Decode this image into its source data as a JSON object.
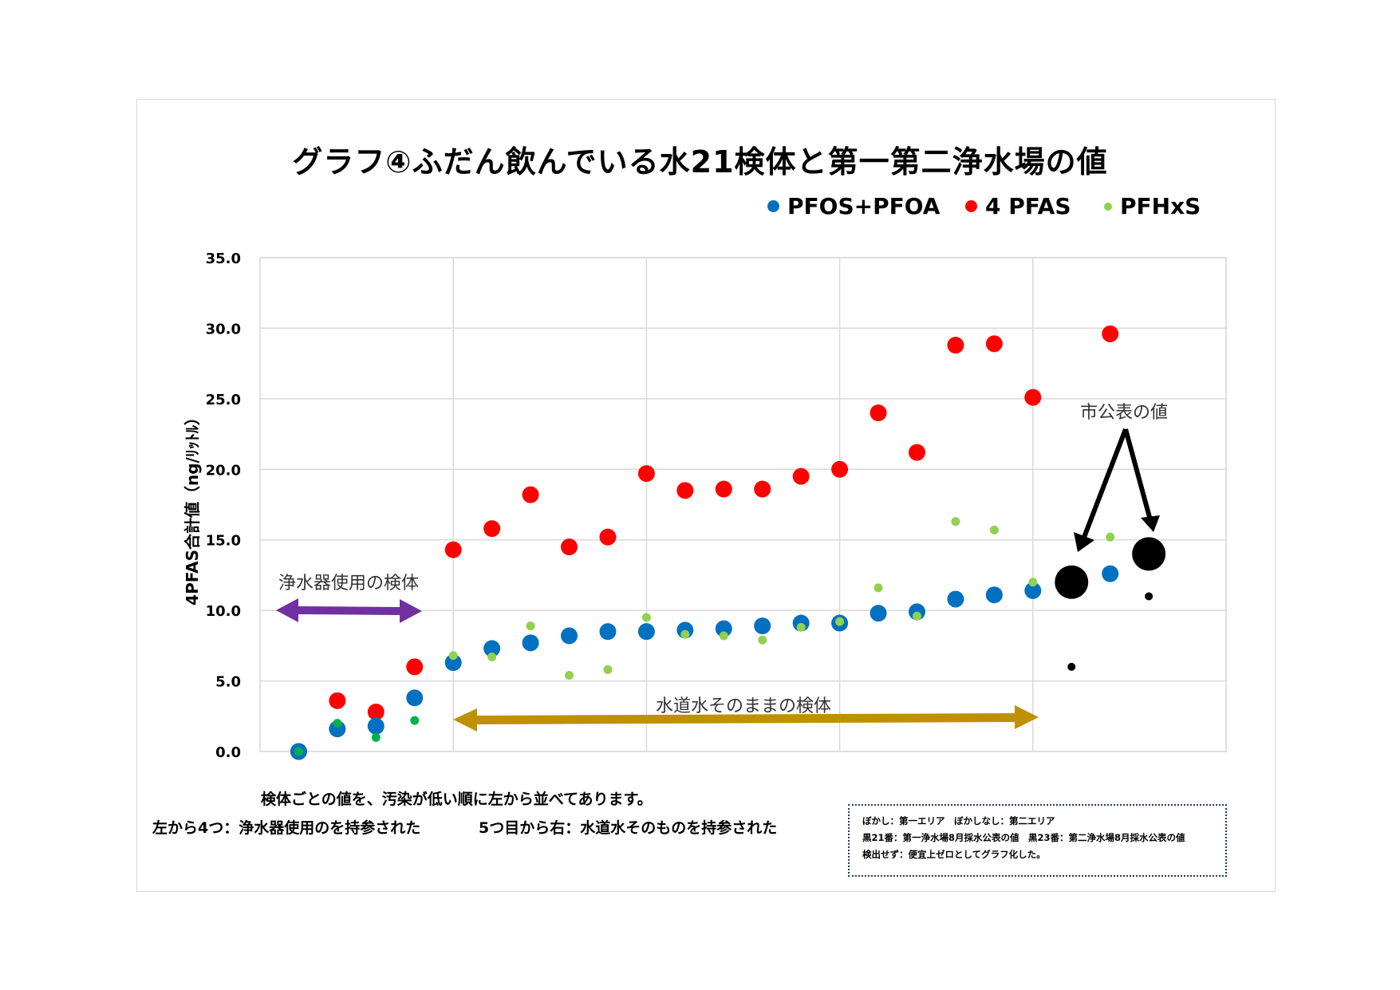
{
  "chart_data": {
    "type": "scatter",
    "title": "グラフ④ふだん飲んでいる水21検体と第一第二浄水場の値",
    "ylabel": "4PFAS合計値（ng/ﾘｯﾄﾙ）",
    "xlabel": "",
    "xlim": [
      0,
      25
    ],
    "ylim": [
      0,
      35
    ],
    "x_gridlines": [
      5,
      10,
      15,
      20,
      25
    ],
    "y_ticks": [
      "0.0",
      "5.0",
      "10.0",
      "15.0",
      "20.0",
      "25.0",
      "30.0",
      "35.0"
    ],
    "grid": true,
    "legend_position": "top-right",
    "series": [
      {
        "name": "4 PFAS",
        "color": "#FF0000",
        "x": [
          1,
          2,
          3,
          4,
          5,
          6,
          7,
          8,
          9,
          10,
          11,
          12,
          13,
          14,
          15,
          16,
          17,
          18,
          19,
          20,
          22
        ],
        "values": [
          0,
          3.6,
          2.8,
          6.0,
          14.3,
          15.8,
          18.2,
          14.5,
          15.2,
          19.7,
          18.5,
          18.6,
          18.6,
          19.5,
          20.0,
          24.0,
          21.2,
          28.8,
          28.9,
          25.1,
          29.6
        ]
      },
      {
        "name": "PFOS+PFOA",
        "color": "#0070C0",
        "x": [
          1,
          2,
          3,
          4,
          5,
          6,
          7,
          8,
          9,
          10,
          11,
          12,
          13,
          14,
          15,
          16,
          17,
          18,
          19,
          20,
          22
        ],
        "values": [
          0,
          1.6,
          1.8,
          3.8,
          6.3,
          7.3,
          7.7,
          8.2,
          8.5,
          8.5,
          8.6,
          8.7,
          8.9,
          9.1,
          9.1,
          9.8,
          9.9,
          10.8,
          11.1,
          11.4,
          12.6
        ]
      },
      {
        "name": "PFHxS",
        "color": "#92D050",
        "point_colors": [
          "#00B050",
          "#00B050",
          "#00B050",
          "#00B050",
          "#92D050",
          "#92D050",
          "#92D050",
          "#92D050",
          "#92D050",
          "#92D050",
          "#92D050",
          "#92D050",
          "#92D050",
          "#92D050",
          "#92D050",
          "#92D050",
          "#92D050",
          "#92D050",
          "#92D050",
          "#92D050",
          "#92D050"
        ],
        "x": [
          1,
          2,
          3,
          4,
          5,
          6,
          7,
          8,
          9,
          10,
          11,
          12,
          13,
          14,
          15,
          16,
          17,
          18,
          19,
          20,
          22
        ],
        "values": [
          0,
          2.0,
          1.0,
          2.2,
          6.8,
          6.7,
          8.9,
          5.4,
          5.8,
          9.5,
          8.3,
          8.2,
          7.9,
          8.8,
          9.2,
          11.6,
          9.6,
          16.3,
          15.7,
          12.0,
          15.2
        ]
      },
      {
        "color": "#000000",
        "marker": "large",
        "x": [
          21,
          23
        ],
        "values": [
          12.0,
          14.0
        ]
      },
      {
        "color": "#000000",
        "marker": "small",
        "x": [
          21,
          23
        ],
        "values": [
          6.0,
          11.0
        ]
      }
    ],
    "annotations": {
      "purifier": "浄水器使用の検体",
      "tap": "水道水そのままの検体",
      "city": "市公表の値",
      "purifier_arrow_color": "#7030A0",
      "tap_arrow_color": "#BF9000"
    }
  },
  "footer": {
    "line1": "検体ごとの値を、汚染が低い順に左から並べてあります。",
    "line2a": "左から4つ：浄水器使用のを持参された",
    "line2b": "5つ目から右：水道水そのものを持参された"
  },
  "note": {
    "line1": "ぼかし：第一エリア　ぼかしなし：第二エリア",
    "line2": "黒21番：第一浄水場8月採水公表の値　黒23番：第二浄水場8月採水公表の値",
    "line3": "検出せず：便宜上ゼロとしてグラフ化した。"
  }
}
